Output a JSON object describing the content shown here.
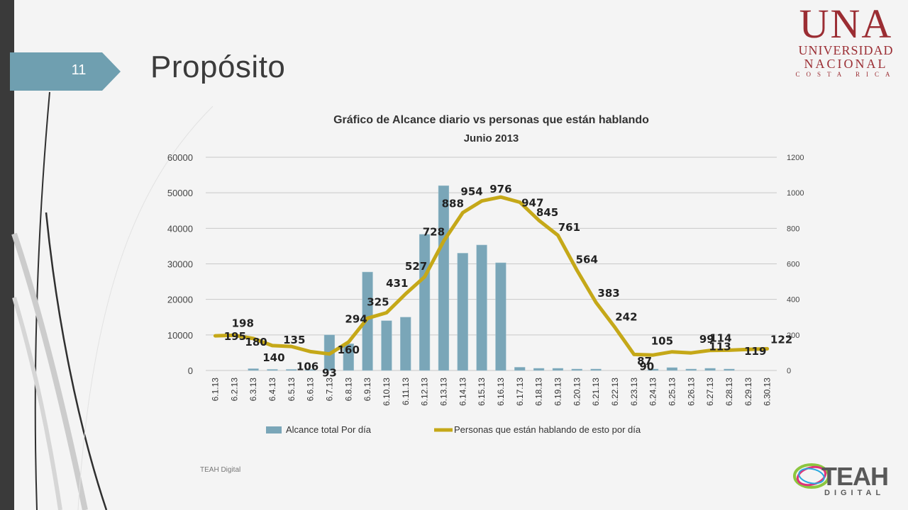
{
  "slide": {
    "number": "11",
    "title": "Propósito",
    "footer": "TEAH Digital"
  },
  "logos": {
    "una": {
      "line1": "UNA",
      "line2": "UNIVERSIDAD",
      "line3": "NACIONAL",
      "line4": "COSTA RICA"
    },
    "teah": {
      "main": "TEAH",
      "sub": "DIGITAL"
    }
  },
  "colors": {
    "bar": "#7aa6b8",
    "line": "#c5a818",
    "accent": "#6f9fb0",
    "una_red": "#9b2d33"
  },
  "chart_data": {
    "type": "bar+line",
    "title_line1": "Gráfico de Alcance diario vs personas que están hablando",
    "title_line2": "Junio 2013",
    "categories": [
      "6.1.13",
      "6.2.13",
      "6.3.13",
      "6.4.13",
      "6.5.13",
      "6.6.13",
      "6.7.13",
      "6.8.13",
      "6.9.13",
      "6.10.13",
      "6.11.13",
      "6.12.13",
      "6.13.13",
      "6.14.13",
      "6.15.13",
      "6.16.13",
      "6.17.13",
      "6.18.13",
      "6.19.13",
      "6.20.13",
      "6.21.13",
      "6.22.13",
      "6.23.13",
      "6.24.13",
      "6.25.13",
      "6.26.13",
      "6.27.13",
      "6.28.13",
      "6.29.13",
      "6.30.13"
    ],
    "series": [
      {
        "name": "Alcance total Por día",
        "axis": "left",
        "type": "bar",
        "values": [
          0,
          0,
          500,
          300,
          300,
          300,
          10000,
          7500,
          27700,
          14000,
          15000,
          38300,
          52000,
          33000,
          35300,
          30300,
          900,
          600,
          600,
          400,
          400,
          0,
          0,
          400,
          800,
          400,
          600,
          400,
          0,
          0
        ]
      },
      {
        "name": "Personas que están hablando de esto por día",
        "axis": "right",
        "type": "line",
        "values": [
          195,
          198,
          180,
          140,
          135,
          106,
          93,
          160,
          294,
          325,
          431,
          527,
          728,
          888,
          954,
          976,
          947,
          845,
          761,
          564,
          383,
          242,
          90,
          87,
          105,
          99,
          113,
          114,
          119,
          122
        ]
      }
    ],
    "y_left": {
      "ylim": [
        0,
        60000
      ],
      "ticks": [
        "0",
        "10000",
        "20000",
        "30000",
        "40000",
        "50000",
        "60000"
      ]
    },
    "y_right": {
      "ylim": [
        0,
        1200
      ],
      "ticks": [
        "0",
        "200",
        "400",
        "600",
        "800",
        "1000",
        "1200"
      ]
    },
    "grid": true,
    "legend": "bottom"
  }
}
